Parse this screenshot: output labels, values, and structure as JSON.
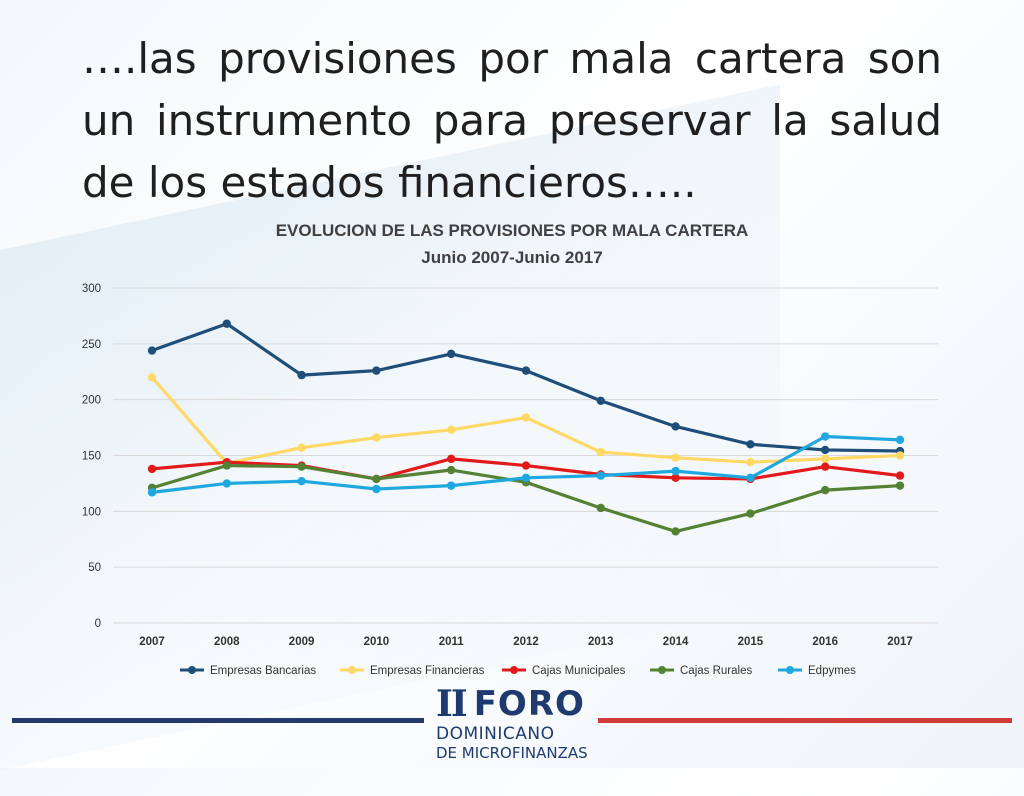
{
  "slide": {
    "title": "….las provisiones por mala cartera son un instrumento para preservar la salud de los estados financieros….."
  },
  "chart_data": {
    "type": "line",
    "title": "EVOLUCION DE LAS PROVISIONES POR MALA CARTERA",
    "subtitle": "Junio 2007-Junio 2017",
    "categories": [
      "2007",
      "2008",
      "2009",
      "2010",
      "2011",
      "2012",
      "2013",
      "2014",
      "2015",
      "2016",
      "2017"
    ],
    "ylim": [
      0,
      300
    ],
    "yticks": [
      0,
      50,
      100,
      150,
      200,
      250,
      300
    ],
    "grid": true,
    "legend_position": "bottom",
    "series": [
      {
        "name": "Empresas Bancarias",
        "color": "#1f4e79",
        "values": [
          244,
          268,
          222,
          226,
          241,
          226,
          199,
          176,
          160,
          155,
          154
        ]
      },
      {
        "name": "Empresas Financieras",
        "color": "#ffd966",
        "values": [
          220,
          143,
          157,
          166,
          173,
          184,
          153,
          148,
          144,
          147,
          150
        ]
      },
      {
        "name": "Cajas Municipales",
        "color": "#e31a1c",
        "values": [
          138,
          144,
          141,
          129,
          147,
          141,
          133,
          130,
          129,
          140,
          132
        ]
      },
      {
        "name": "Cajas Rurales",
        "color": "#548235",
        "values": [
          121,
          141,
          140,
          129,
          137,
          126,
          103,
          82,
          98,
          119,
          123
        ]
      },
      {
        "name": "Edpymes",
        "color": "#1fa8e0",
        "values": [
          117,
          125,
          127,
          120,
          123,
          130,
          132,
          136,
          130,
          167,
          164
        ]
      }
    ]
  },
  "logo": {
    "roman": "II",
    "word": "FORO",
    "line1": "DOMINICANO",
    "line2": "DE MICROFINANZAS"
  }
}
